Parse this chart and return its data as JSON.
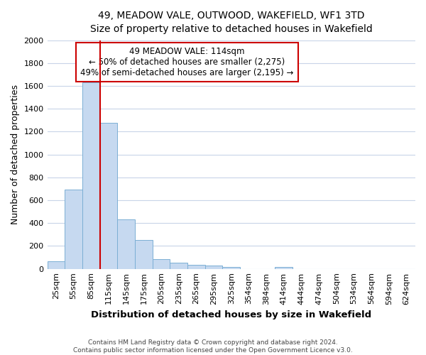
{
  "title": "49, MEADOW VALE, OUTWOOD, WAKEFIELD, WF1 3TD",
  "subtitle": "Size of property relative to detached houses in Wakefield",
  "xlabel": "Distribution of detached houses by size in Wakefield",
  "ylabel": "Number of detached properties",
  "categories": [
    "25sqm",
    "55sqm",
    "85sqm",
    "115sqm",
    "145sqm",
    "175sqm",
    "205sqm",
    "235sqm",
    "265sqm",
    "295sqm",
    "325sqm",
    "354sqm",
    "384sqm",
    "414sqm",
    "444sqm",
    "474sqm",
    "504sqm",
    "534sqm",
    "564sqm",
    "594sqm",
    "624sqm"
  ],
  "values": [
    65,
    695,
    1630,
    1280,
    435,
    250,
    88,
    52,
    35,
    28,
    15,
    0,
    0,
    15,
    0,
    0,
    0,
    0,
    0,
    0,
    0
  ],
  "bar_color": "#c6d9f0",
  "bar_edge_color": "#7bafd4",
  "grid_color": "#c8d4e8",
  "annotation_text": "49 MEADOW VALE: 114sqm\n← 50% of detached houses are smaller (2,275)\n49% of semi-detached houses are larger (2,195) →",
  "annotation_box_color": "#ffffff",
  "annotation_box_edge_color": "#cc0000",
  "footnote": "Contains HM Land Registry data © Crown copyright and database right 2024.\nContains public sector information licensed under the Open Government Licence v3.0.",
  "ylim": [
    0,
    2000
  ],
  "figsize": [
    6.0,
    5.0
  ],
  "dpi": 100,
  "red_line_x": 2.5
}
